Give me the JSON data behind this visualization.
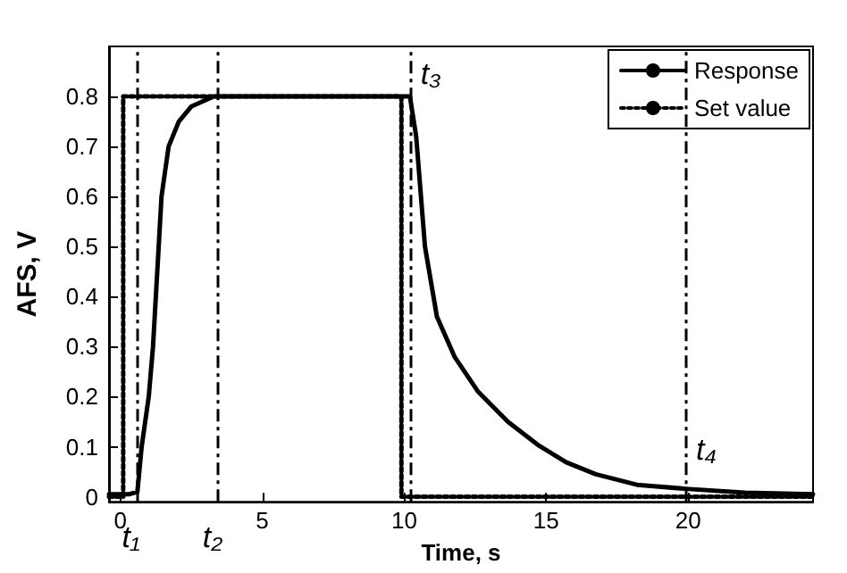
{
  "chart_data": {
    "type": "line",
    "xlabel": "Time, s",
    "ylabel": "AFS, V",
    "xlim": [
      -0.4,
      24.4
    ],
    "ylim": [
      -0.01,
      0.9
    ],
    "xticks": [
      0,
      5,
      10,
      15,
      20
    ],
    "yticks": [
      0,
      0.1,
      0.2,
      0.3,
      0.4,
      0.5,
      0.6,
      0.7,
      0.8
    ],
    "series": [
      {
        "name": "Response",
        "color": "#000000",
        "line_style": "solid",
        "x": [
          -0.4,
          0.3,
          0.6,
          0.75,
          1.0,
          1.15,
          1.35,
          1.45,
          1.7,
          2.06,
          2.5,
          3.3,
          5,
          7,
          9,
          10.2,
          10.42,
          10.73,
          11.15,
          11.77,
          12.6,
          13.65,
          14.7,
          15.7,
          16.75,
          18.2,
          19.9,
          22,
          24.4
        ],
        "values": [
          0.005,
          0.005,
          0.01,
          0.1,
          0.2,
          0.3,
          0.5,
          0.6,
          0.7,
          0.75,
          0.78,
          0.8,
          0.8,
          0.8,
          0.8,
          0.8,
          0.72,
          0.5,
          0.36,
          0.28,
          0.21,
          0.15,
          0.104,
          0.069,
          0.045,
          0.024,
          0.016,
          0.008,
          0.005
        ]
      },
      {
        "name": "Set value",
        "color": "#000000",
        "line_style": "dotted",
        "x": [
          -0.4,
          0.1,
          0.1,
          9.9,
          9.9,
          24.4
        ],
        "values": [
          0,
          0,
          0.8,
          0.8,
          0,
          0
        ]
      }
    ],
    "ref_lines": [
      {
        "axis": "x",
        "value": 0.56,
        "line_style": "dashed",
        "color": "#000000"
      },
      {
        "axis": "x",
        "value": 3.4,
        "line_style": "dashed",
        "color": "#000000"
      },
      {
        "axis": "x",
        "value": 10.2,
        "line_style": "dashed",
        "color": "#000000"
      },
      {
        "axis": "x",
        "value": 19.9,
        "line_style": "dashed",
        "color": "#000000"
      }
    ],
    "annotations": [
      {
        "text": "t₁",
        "x": 0.56,
        "y": 0
      },
      {
        "text": "t₂",
        "x": 3.4,
        "y": 0
      },
      {
        "text": "t₃",
        "x": 10.2,
        "y": 0.8
      },
      {
        "text": "t₄",
        "x": 19.9,
        "y": 0.05
      }
    ],
    "legend": "top right",
    "grid": false,
    "marker": "none"
  }
}
